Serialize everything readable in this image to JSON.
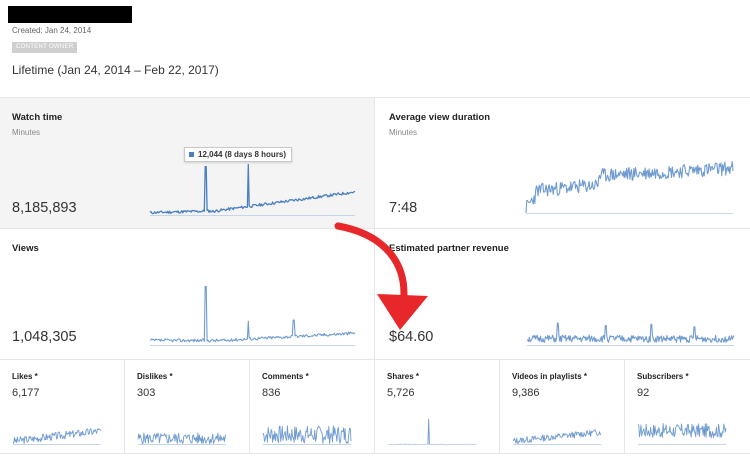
{
  "header": {
    "created": "Created: Jan 24, 2014",
    "badge": "CONTENT OWNER",
    "range": "Lifetime (Jan 24, 2014 – Feb 22, 2017)"
  },
  "cards": {
    "watch_time": {
      "title": "Watch time",
      "subtitle": "Minutes",
      "value": "8,185,893"
    },
    "avg_duration": {
      "title": "Average view duration",
      "subtitle": "Minutes",
      "value": "7:48"
    },
    "views": {
      "title": "Views",
      "value": "1,048,305"
    },
    "revenue": {
      "title": "Estimated partner revenue",
      "value": "$64.60"
    }
  },
  "tooltip": {
    "text": "12,044 (8 days 8 hours)"
  },
  "small_cards": [
    {
      "title": "Likes *",
      "value": "6,177"
    },
    {
      "title": "Dislikes *",
      "value": "303"
    },
    {
      "title": "Comments *",
      "value": "836"
    },
    {
      "title": "Shares *",
      "value": "5,726"
    },
    {
      "title": "Videos in playlists *",
      "value": "9,386"
    },
    {
      "title": "Subscribers *",
      "value": "92"
    }
  ],
  "colors": {
    "line": "#6f9bd1",
    "line_dark": "#4a7fc1",
    "arrow": "#e8272a"
  }
}
